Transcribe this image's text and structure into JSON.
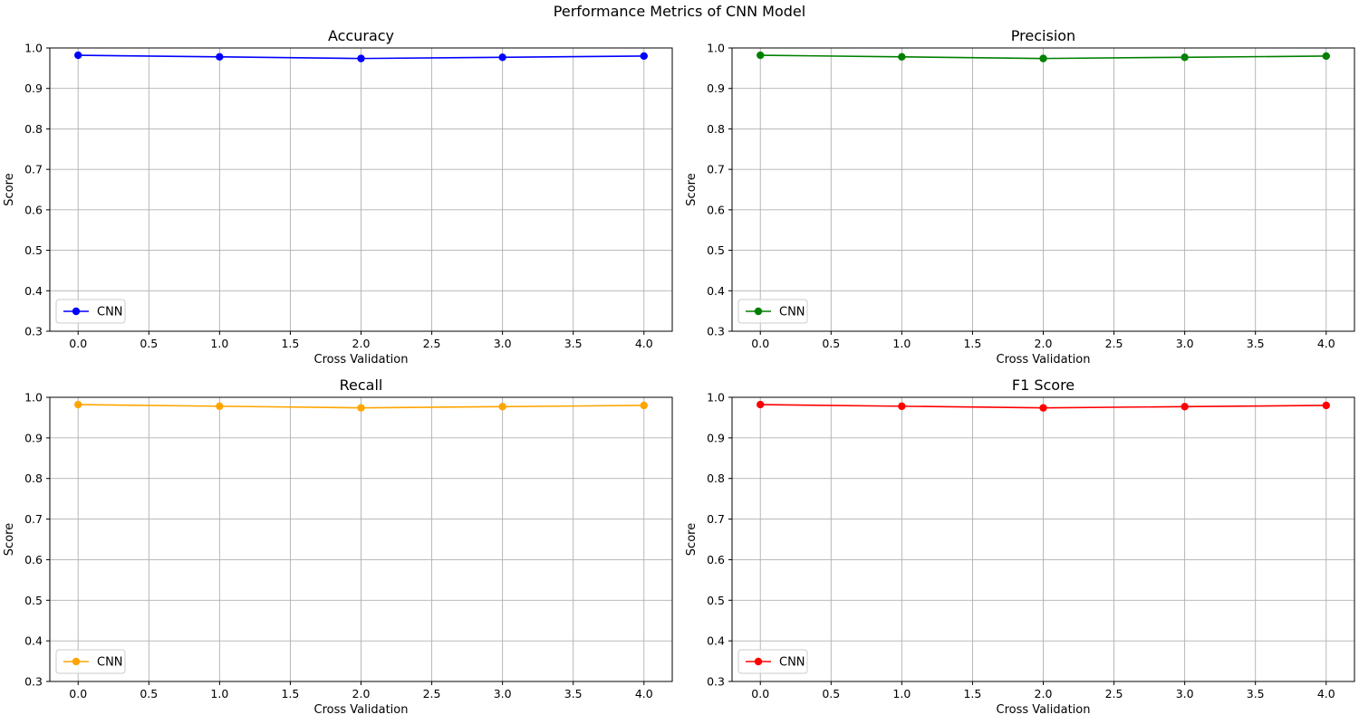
{
  "figure": {
    "suptitle": "Performance Metrics of CNN Model"
  },
  "chart_data": [
    {
      "type": "line",
      "title": "Accuracy",
      "xlabel": "Cross Validation",
      "ylabel": "Score",
      "xlim": [
        -0.2,
        4.2
      ],
      "ylim": [
        0.3,
        1.0
      ],
      "xticks": [
        0.0,
        0.5,
        1.0,
        1.5,
        2.0,
        2.5,
        3.0,
        3.5,
        4.0
      ],
      "xtick_labels": [
        "0.0",
        "0.5",
        "1.0",
        "1.5",
        "2.0",
        "2.5",
        "3.0",
        "3.5",
        "4.0"
      ],
      "yticks": [
        0.3,
        0.4,
        0.5,
        0.6,
        0.7,
        0.8,
        0.9,
        1.0
      ],
      "ytick_labels": [
        "0.3",
        "0.4",
        "0.5",
        "0.6",
        "0.7",
        "0.8",
        "0.9",
        "1.0"
      ],
      "grid": true,
      "legend": "lower-left",
      "series": [
        {
          "name": "CNN",
          "color": "#0000ff",
          "marker": "circle",
          "x": [
            0,
            1,
            2,
            3,
            4
          ],
          "y": [
            0.982,
            0.978,
            0.974,
            0.977,
            0.98
          ]
        }
      ]
    },
    {
      "type": "line",
      "title": "Precision",
      "xlabel": "Cross Validation",
      "ylabel": "Score",
      "xlim": [
        -0.2,
        4.2
      ],
      "ylim": [
        0.3,
        1.0
      ],
      "xticks": [
        0.0,
        0.5,
        1.0,
        1.5,
        2.0,
        2.5,
        3.0,
        3.5,
        4.0
      ],
      "xtick_labels": [
        "0.0",
        "0.5",
        "1.0",
        "1.5",
        "2.0",
        "2.5",
        "3.0",
        "3.5",
        "4.0"
      ],
      "yticks": [
        0.3,
        0.4,
        0.5,
        0.6,
        0.7,
        0.8,
        0.9,
        1.0
      ],
      "ytick_labels": [
        "0.3",
        "0.4",
        "0.5",
        "0.6",
        "0.7",
        "0.8",
        "0.9",
        "1.0"
      ],
      "grid": true,
      "legend": "lower-left",
      "series": [
        {
          "name": "CNN",
          "color": "#008000",
          "marker": "circle",
          "x": [
            0,
            1,
            2,
            3,
            4
          ],
          "y": [
            0.982,
            0.978,
            0.974,
            0.977,
            0.98
          ]
        }
      ]
    },
    {
      "type": "line",
      "title": "Recall",
      "xlabel": "Cross Validation",
      "ylabel": "Score",
      "xlim": [
        -0.2,
        4.2
      ],
      "ylim": [
        0.3,
        1.0
      ],
      "xticks": [
        0.0,
        0.5,
        1.0,
        1.5,
        2.0,
        2.5,
        3.0,
        3.5,
        4.0
      ],
      "xtick_labels": [
        "0.0",
        "0.5",
        "1.0",
        "1.5",
        "2.0",
        "2.5",
        "3.0",
        "3.5",
        "4.0"
      ],
      "yticks": [
        0.3,
        0.4,
        0.5,
        0.6,
        0.7,
        0.8,
        0.9,
        1.0
      ],
      "ytick_labels": [
        "0.3",
        "0.4",
        "0.5",
        "0.6",
        "0.7",
        "0.8",
        "0.9",
        "1.0"
      ],
      "grid": true,
      "legend": "lower-left",
      "series": [
        {
          "name": "CNN",
          "color": "#ffa500",
          "marker": "circle",
          "x": [
            0,
            1,
            2,
            3,
            4
          ],
          "y": [
            0.982,
            0.978,
            0.974,
            0.977,
            0.98
          ]
        }
      ]
    },
    {
      "type": "line",
      "title": "F1 Score",
      "xlabel": "Cross Validation",
      "ylabel": "Score",
      "xlim": [
        -0.2,
        4.2
      ],
      "ylim": [
        0.3,
        1.0
      ],
      "xticks": [
        0.0,
        0.5,
        1.0,
        1.5,
        2.0,
        2.5,
        3.0,
        3.5,
        4.0
      ],
      "xtick_labels": [
        "0.0",
        "0.5",
        "1.0",
        "1.5",
        "2.0",
        "2.5",
        "3.0",
        "3.5",
        "4.0"
      ],
      "yticks": [
        0.3,
        0.4,
        0.5,
        0.6,
        0.7,
        0.8,
        0.9,
        1.0
      ],
      "ytick_labels": [
        "0.3",
        "0.4",
        "0.5",
        "0.6",
        "0.7",
        "0.8",
        "0.9",
        "1.0"
      ],
      "grid": true,
      "legend": "lower-left",
      "series": [
        {
          "name": "CNN",
          "color": "#ff0000",
          "marker": "circle",
          "x": [
            0,
            1,
            2,
            3,
            4
          ],
          "y": [
            0.982,
            0.978,
            0.974,
            0.977,
            0.98
          ]
        }
      ]
    }
  ]
}
